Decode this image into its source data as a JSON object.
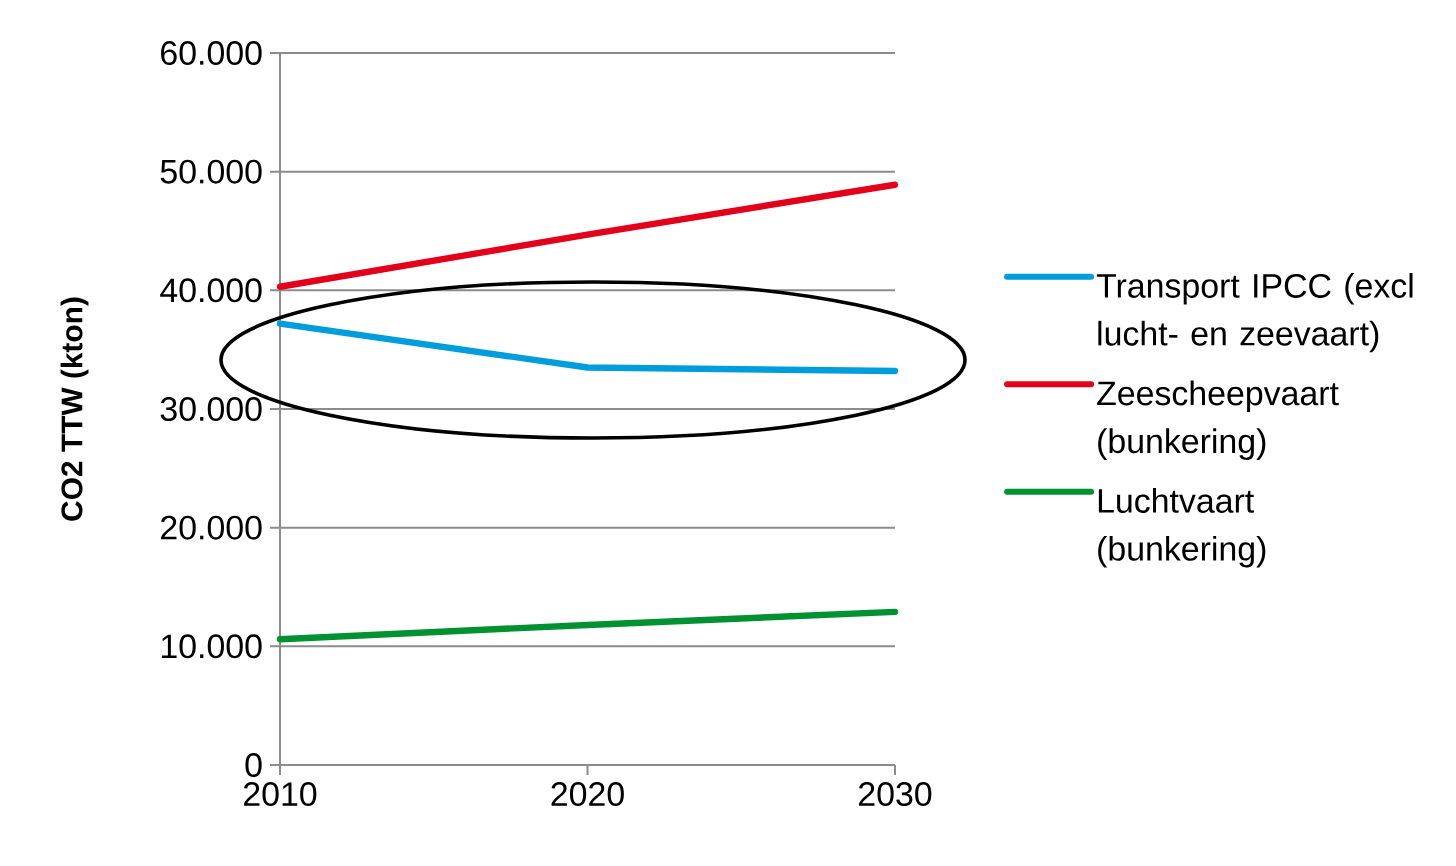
{
  "chart_data": {
    "type": "line",
    "ylabel": "CO2 TTW (kton)",
    "x": [
      2010,
      2020,
      2030
    ],
    "series": [
      {
        "name": "Transport IPCC (excl lucht- en zeevaart)",
        "color": "#009ddc",
        "values": [
          37200,
          33500,
          33200
        ]
      },
      {
        "name": "Zeescheepvaart (bunkering)",
        "color": "#e2001a",
        "values": [
          40300,
          44700,
          48900
        ]
      },
      {
        "name": "Luchtvaart (bunkering)",
        "color": "#009130",
        "values": [
          10600,
          11800,
          12900
        ]
      }
    ],
    "xlim": [
      2010,
      2030
    ],
    "xticks": [
      2010,
      2020,
      2030
    ],
    "ylim": [
      0,
      60000
    ],
    "yticks": [
      {
        "value": 0,
        "label": "0"
      },
      {
        "value": 10000,
        "label": "10.000"
      },
      {
        "value": 20000,
        "label": "20.000"
      },
      {
        "value": 30000,
        "label": "30.000"
      },
      {
        "value": 40000,
        "label": "40.000"
      },
      {
        "value": 50000,
        "label": "50.000"
      },
      {
        "value": 60000,
        "label": "60.000"
      }
    ],
    "grid": "y",
    "legend": "right",
    "marker": "none",
    "line_style": "solid"
  }
}
